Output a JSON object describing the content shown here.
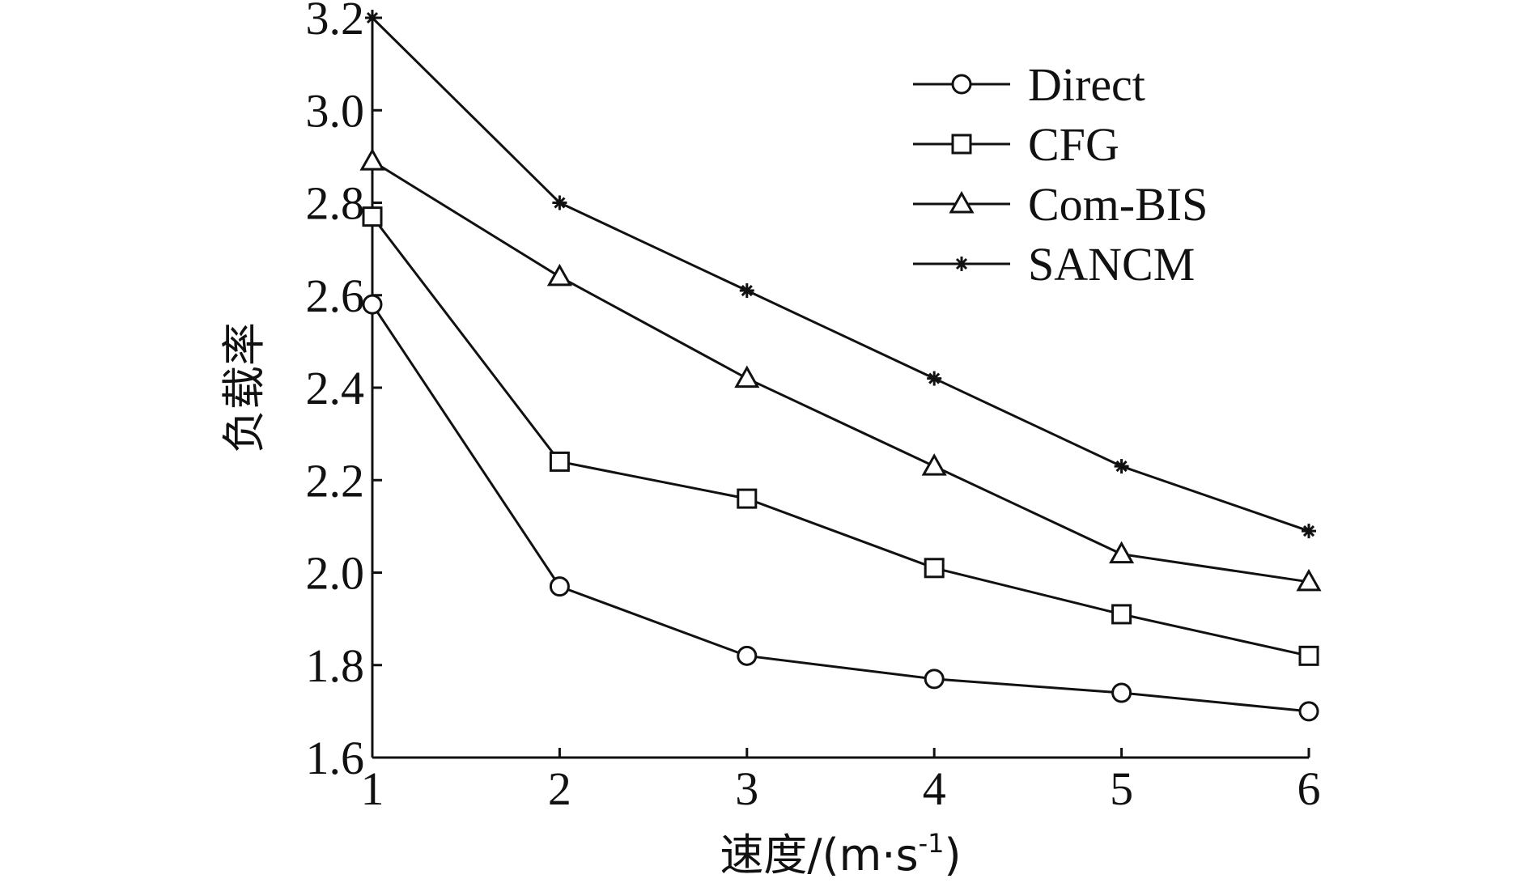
{
  "chart_data": {
    "type": "line",
    "title": "",
    "xlabel": "速度/(m·s",
    "xlabel_sup": "-1",
    "xlabel_close": ")",
    "ylabel": "负载率",
    "x": [
      1,
      2,
      3,
      4,
      5,
      6
    ],
    "xlim": [
      1,
      6
    ],
    "ylim": [
      1.6,
      3.2
    ],
    "x_ticks": [
      "1",
      "2",
      "3",
      "4",
      "5",
      "6"
    ],
    "y_ticks": [
      "1.6",
      "1.8",
      "2.0",
      "2.2",
      "2.4",
      "2.6",
      "2.8",
      "3.0",
      "3.2"
    ],
    "grid": false,
    "legend_position": "top-right",
    "series": [
      {
        "name": "Direct",
        "marker": "circle",
        "values": [
          2.58,
          1.97,
          1.82,
          1.77,
          1.74,
          1.7
        ]
      },
      {
        "name": "CFG",
        "marker": "square",
        "values": [
          2.77,
          2.24,
          2.16,
          2.01,
          1.91,
          1.82
        ]
      },
      {
        "name": "Com-BIS",
        "marker": "triangle",
        "values": [
          2.89,
          2.64,
          2.42,
          2.23,
          2.04,
          1.98
        ]
      },
      {
        "name": "SANCM",
        "marker": "star",
        "values": [
          3.2,
          2.8,
          2.61,
          2.42,
          2.23,
          2.09
        ]
      }
    ]
  }
}
